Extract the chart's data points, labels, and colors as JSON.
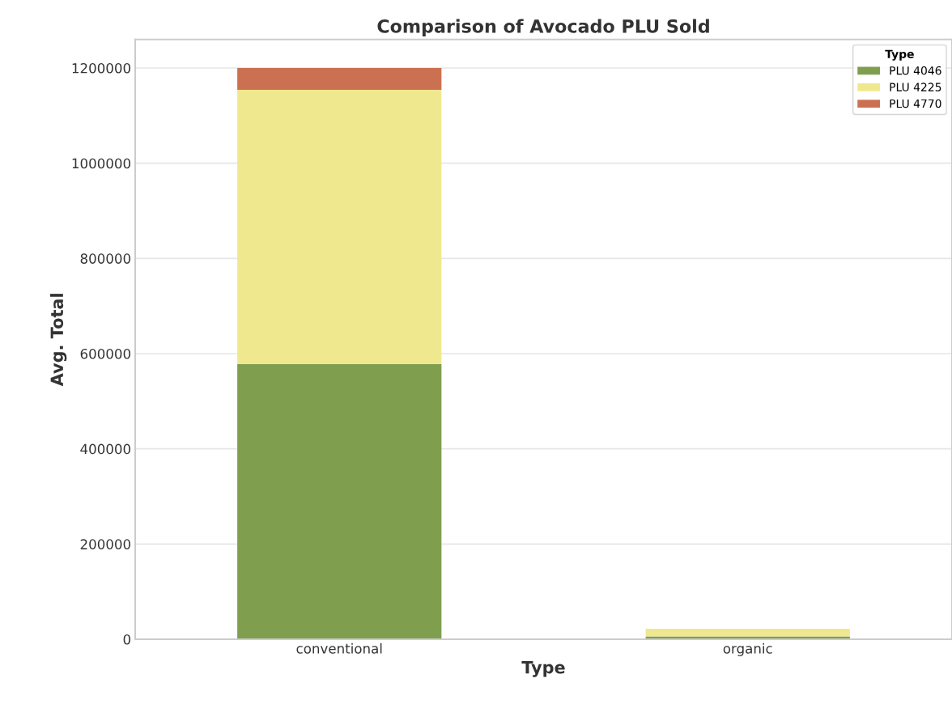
{
  "chart_data": {
    "type": "bar",
    "title": "Comparison of Avocado PLU Sold",
    "xlabel": "Type",
    "ylabel": "Avg. Total",
    "legend_title": "Type",
    "categories": [
      "conventional",
      "organic"
    ],
    "stacked": true,
    "series": [
      {
        "name": "PLU 4046",
        "color": "#7f9f4f",
        "values": [
          578000,
          6000
        ]
      },
      {
        "name": "PLU 4225",
        "color": "#f0e88f",
        "values": [
          576000,
          16000
        ]
      },
      {
        "name": "PLU 4770",
        "color": "#cb7152",
        "values": [
          46000,
          null
        ]
      }
    ],
    "ylim": [
      0,
      1260000
    ],
    "yticks": [
      0,
      200000,
      400000,
      600000,
      800000,
      1000000,
      1200000
    ],
    "grid": "y",
    "legend": "top right"
  }
}
